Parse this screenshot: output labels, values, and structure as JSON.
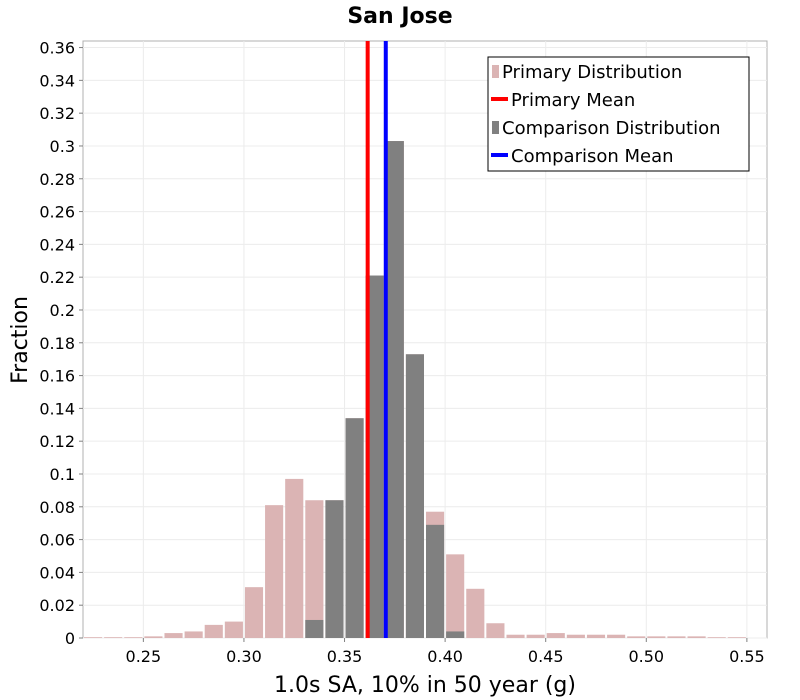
{
  "chart_data": {
    "type": "bar",
    "title": "San Jose",
    "xlabel": "1.0s SA, 10% in 50 year (g)",
    "ylabel": "Fraction",
    "xlim": [
      0.22,
      0.56
    ],
    "ylim": [
      0,
      0.364
    ],
    "xticks": [
      "0.25",
      "0.30",
      "0.35",
      "0.40",
      "0.45",
      "0.50",
      "0.55"
    ],
    "xtick_values": [
      0.25,
      0.3,
      0.35,
      0.4,
      0.45,
      0.5,
      0.55
    ],
    "yticks": [
      "0",
      "0.02",
      "0.04",
      "0.06",
      "0.08",
      "0.1",
      "0.12",
      "0.14",
      "0.16",
      "0.18",
      "0.2",
      "0.22",
      "0.24",
      "0.26",
      "0.28",
      "0.3",
      "0.32",
      "0.34",
      "0.36"
    ],
    "ytick_values": [
      0,
      0.02,
      0.04,
      0.06,
      0.08,
      0.1,
      0.12,
      0.14,
      0.16,
      0.18,
      0.2,
      0.22,
      0.24,
      0.26,
      0.28,
      0.3,
      0.32,
      0.34,
      0.36
    ],
    "grid": true,
    "legend_position": "top-right",
    "bin_width": 0.01,
    "series": [
      {
        "name": "Primary Distribution",
        "kind": "histogram",
        "color": "#dbb4b4",
        "bin_centers": [
          0.225,
          0.235,
          0.245,
          0.255,
          0.265,
          0.275,
          0.285,
          0.295,
          0.305,
          0.315,
          0.325,
          0.335,
          0.345,
          0.355,
          0.365,
          0.375,
          0.385,
          0.395,
          0.405,
          0.415,
          0.425,
          0.435,
          0.445,
          0.455,
          0.465,
          0.475,
          0.485,
          0.495,
          0.505,
          0.515,
          0.525,
          0.535,
          0.545
        ],
        "values": [
          0.0005,
          0.0005,
          0.0005,
          0.001,
          0.003,
          0.004,
          0.008,
          0.01,
          0.031,
          0.081,
          0.097,
          0.084,
          0.084,
          0.134,
          0.221,
          0.303,
          0.173,
          0.077,
          0.051,
          0.03,
          0.009,
          0.002,
          0.002,
          0.003,
          0.002,
          0.002,
          0.002,
          0.001,
          0.001,
          0.001,
          0.001,
          0.0005,
          0.0005
        ]
      },
      {
        "name": "Comparison Distribution",
        "kind": "histogram",
        "color": "#808080",
        "bin_centers": [
          0.335,
          0.345,
          0.355,
          0.365,
          0.375,
          0.385,
          0.395,
          0.405
        ],
        "values": [
          0.011,
          0.084,
          0.134,
          0.221,
          0.303,
          0.173,
          0.069,
          0.004
        ]
      },
      {
        "name": "Primary Mean",
        "kind": "vline",
        "color": "#ff0000",
        "x": 0.3615
      },
      {
        "name": "Comparison Mean",
        "kind": "vline",
        "color": "#0000ff",
        "x": 0.3705
      }
    ]
  }
}
